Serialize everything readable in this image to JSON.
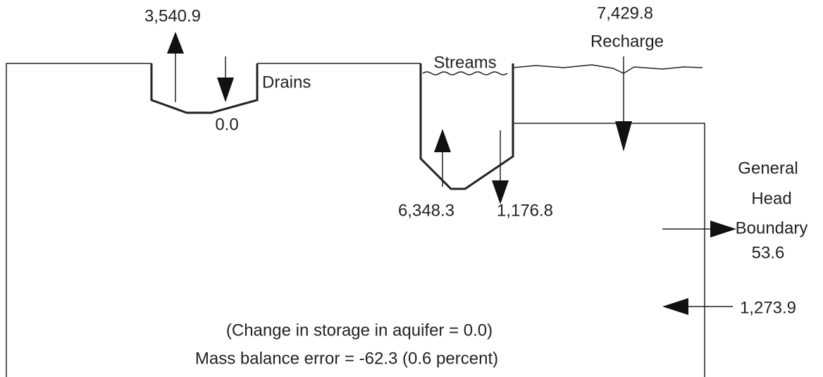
{
  "drains": {
    "label": "Drains",
    "outflow": "3,540.9",
    "inflow": "0.0"
  },
  "streams": {
    "label": "Streams",
    "inflow": "6,348.3",
    "outflow": "1,176.8"
  },
  "recharge": {
    "value": "7,429.8",
    "label": "Recharge"
  },
  "general_head_boundary": {
    "label_lines": [
      "General",
      "Head",
      "Boundary"
    ],
    "outflow": "53.6",
    "inflow": "1,273.9"
  },
  "notes": [
    "(Change in storage in aquifer = 0.0)",
    "Mass balance error = -62.3 (0.6 percent)"
  ]
}
